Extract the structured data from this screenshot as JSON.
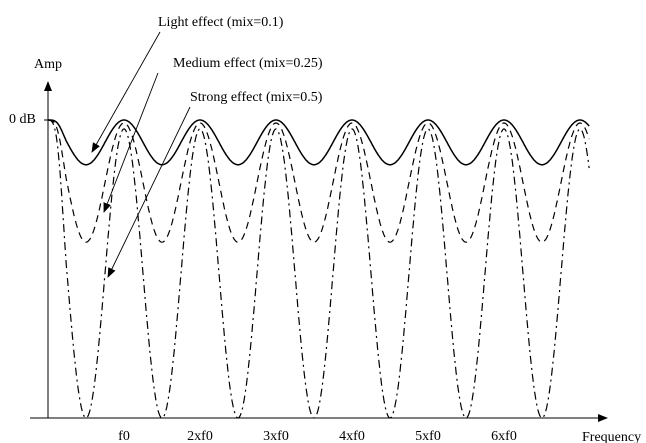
{
  "chart_data": {
    "type": "line",
    "title": "",
    "xlabel": "Frequency",
    "ylabel": "Amp",
    "y_reference_label": "0 dB",
    "x_unit": "f0",
    "xlim": [
      0,
      7.12
    ],
    "ylim": [
      0,
      1
    ],
    "grid": false,
    "x_ticks": [
      {
        "value": 1,
        "label": "f0"
      },
      {
        "value": 2,
        "label": "2xf0"
      },
      {
        "value": 3,
        "label": "3xf0"
      },
      {
        "value": 4,
        "label": "4xf0"
      },
      {
        "value": 5,
        "label": "5xf0"
      },
      {
        "value": 6,
        "label": "6xf0"
      }
    ],
    "series": [
      {
        "name": "Light effect (mix=0.1)",
        "dash": "solid",
        "peak": 1.0,
        "trough": 0.85,
        "end_value": 0.84
      },
      {
        "name": "Medium effect (mix=0.25)",
        "dash": "dashed",
        "peak": 0.99,
        "trough": 0.59,
        "end_value": 0.58
      },
      {
        "name": "Strong effect (mix=0.5)",
        "dash": "dashdot",
        "peak": 0.97,
        "trough": 0.0,
        "end_value": 0.0
      }
    ],
    "annotations": [
      {
        "text": "Light effect (mix=0.1)",
        "points_to": "Light effect (mix=0.1)"
      },
      {
        "text": "Medium effect (mix=0.25)",
        "points_to": "Medium effect (mix=0.25)"
      },
      {
        "text": "Strong effect (mix=0.5)",
        "points_to": "Strong effect (mix=0.5)"
      }
    ]
  }
}
